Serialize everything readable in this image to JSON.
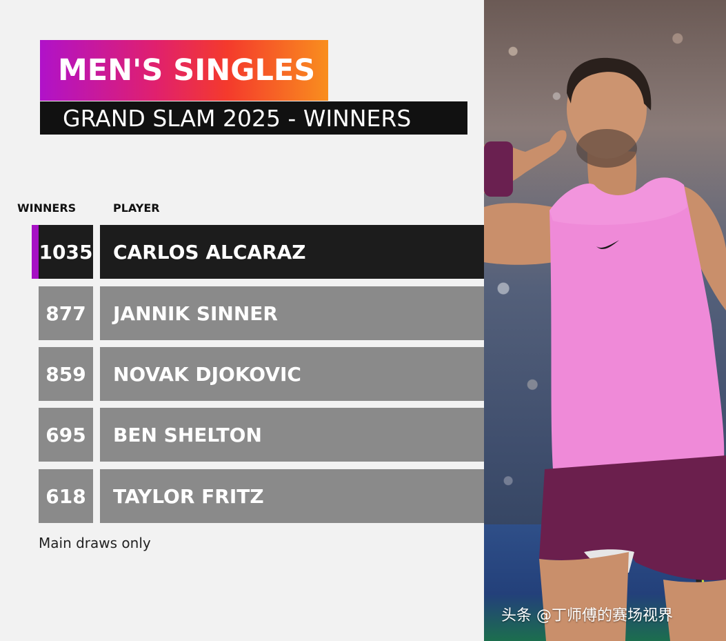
{
  "header": {
    "title": "MEN'S SINGLES",
    "subtitle": "GRAND SLAM 2025 - WINNERS"
  },
  "table": {
    "columns": {
      "winners": "WINNERS",
      "player": "PLAYER"
    },
    "rows": [
      {
        "winners": "1035",
        "player": "CARLOS ALCARAZ"
      },
      {
        "winners": "877",
        "player": "JANNIK SINNER"
      },
      {
        "winners": "859",
        "player": "NOVAK DJOKOVIC"
      },
      {
        "winners": "695",
        "player": "BEN SHELTON"
      },
      {
        "winners": "618",
        "player": "TAYLOR FRITZ"
      }
    ]
  },
  "footnote": "Main draws only",
  "watermark": "头条 @丁师傅的赛场视界",
  "colors": {
    "gradient": [
      "#b012c9",
      "#e0206e",
      "#f43a2c",
      "#f98e1e"
    ],
    "accent": "#a611c4",
    "top_row": "#1c1c1c",
    "other_rows": "#8a8a8a"
  },
  "photo": {
    "subject": "tennis player in pink sleeveless shirt celebrating"
  }
}
